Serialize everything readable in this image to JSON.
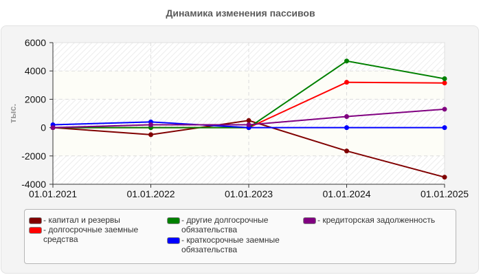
{
  "title": "Динамика изменения пассивов",
  "chart_data": {
    "type": "line",
    "title": "Динамика изменения пассивов",
    "xlabel": "",
    "ylabel": "тыс.",
    "x": [
      "01.01.2021",
      "01.01.2022",
      "01.01.2023",
      "01.01.2024",
      "01.01.2025"
    ],
    "ylim": [
      -4000,
      6000
    ],
    "yticks": [
      6000,
      4000,
      2000,
      0,
      -2000,
      -4000
    ],
    "grid": true,
    "legend_position": "bottom",
    "series": [
      {
        "name": "капитал и резервы",
        "color": "#800000",
        "values": [
          0,
          -500,
          500,
          -1650,
          -3500
        ]
      },
      {
        "name": "долгосрочные заемные средства",
        "color": "#ff0000",
        "values": [
          0,
          0,
          0,
          3200,
          3150
        ]
      },
      {
        "name": "другие долгосрочные обязательства",
        "color": "#008000",
        "values": [
          0,
          0,
          0,
          4700,
          3450
        ]
      },
      {
        "name": "краткосрочные заемные обязательства",
        "color": "#0000ff",
        "values": [
          200,
          400,
          0,
          0,
          0
        ]
      },
      {
        "name": "кредиторская задолженность",
        "color": "#800080",
        "values": [
          0,
          200,
          200,
          780,
          1300
        ]
      }
    ]
  },
  "legend": [
    {
      "label": "- капитал и резервы",
      "color": "#800000"
    },
    {
      "label": "- долгосрочные заемные\nсредства",
      "color": "#ff0000"
    },
    {
      "label": "- другие долгосрочные\nобязательства",
      "color": "#008000"
    },
    {
      "label": "- краткосрочные заемные\nобязательства",
      "color": "#0000ff"
    },
    {
      "label": "- кредиторская задолженность",
      "color": "#800080"
    }
  ]
}
